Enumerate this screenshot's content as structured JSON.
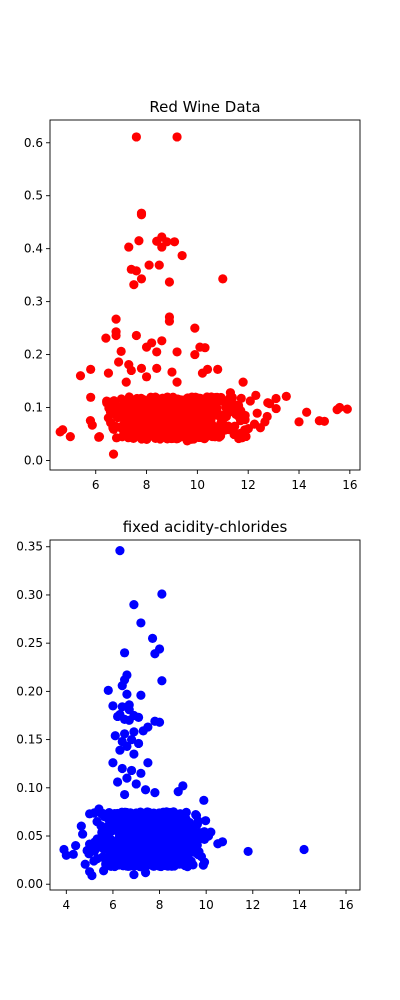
{
  "chart_data": [
    {
      "type": "scatter",
      "title": "Red Wine Data",
      "xlabel": "",
      "ylabel": "",
      "xlim": [
        4.2,
        16.4
      ],
      "ylim": [
        -0.018,
        0.643
      ],
      "xticks": [
        6,
        8,
        10,
        12,
        14,
        16
      ],
      "yticks": [
        0.0,
        0.1,
        0.2,
        0.3,
        0.4,
        0.5,
        0.6
      ],
      "ytick_labels": [
        "0.0",
        "0.1",
        "0.2",
        "0.3",
        "0.4",
        "0.5",
        "0.6"
      ],
      "xtick_labels": [
        "6",
        "8",
        "10",
        "12",
        "14",
        "16"
      ],
      "color": "#ff0000",
      "grid": false,
      "cluster": {
        "x_range": [
          4.9,
          13.6
        ],
        "y_range": [
          0.04,
          0.12
        ],
        "count": 620
      },
      "points": [
        [
          7.6,
          0.611
        ],
        [
          9.2,
          0.611
        ],
        [
          7.8,
          0.467
        ],
        [
          7.8,
          0.464
        ],
        [
          8.6,
          0.422
        ],
        [
          8.4,
          0.414
        ],
        [
          8.8,
          0.413
        ],
        [
          9.1,
          0.413
        ],
        [
          8.6,
          0.403
        ],
        [
          7.3,
          0.403
        ],
        [
          7.7,
          0.415
        ],
        [
          9.4,
          0.387
        ],
        [
          8.1,
          0.369
        ],
        [
          8.5,
          0.369
        ],
        [
          7.4,
          0.361
        ],
        [
          7.6,
          0.358
        ],
        [
          7.8,
          0.343
        ],
        [
          8.9,
          0.337
        ],
        [
          11.0,
          0.343
        ],
        [
          7.5,
          0.332
        ],
        [
          8.9,
          0.271
        ],
        [
          8.9,
          0.263
        ],
        [
          6.8,
          0.267
        ],
        [
          9.9,
          0.25
        ],
        [
          6.8,
          0.243
        ],
        [
          6.8,
          0.236
        ],
        [
          7.6,
          0.236
        ],
        [
          6.4,
          0.231
        ],
        [
          8.6,
          0.226
        ],
        [
          8.2,
          0.222
        ],
        [
          8.0,
          0.214
        ],
        [
          10.1,
          0.214
        ],
        [
          10.3,
          0.213
        ],
        [
          7.0,
          0.206
        ],
        [
          8.4,
          0.205
        ],
        [
          9.2,
          0.205
        ],
        [
          9.9,
          0.2
        ],
        [
          6.9,
          0.186
        ],
        [
          7.3,
          0.181
        ],
        [
          7.8,
          0.174
        ],
        [
          8.4,
          0.174
        ],
        [
          10.4,
          0.172
        ],
        [
          7.4,
          0.17
        ],
        [
          9.0,
          0.167
        ],
        [
          10.8,
          0.172
        ],
        [
          5.8,
          0.172
        ],
        [
          6.5,
          0.165
        ],
        [
          10.2,
          0.165
        ],
        [
          8.0,
          0.158
        ],
        [
          5.4,
          0.16
        ],
        [
          9.2,
          0.148
        ],
        [
          11.8,
          0.148
        ],
        [
          7.2,
          0.148
        ],
        [
          12.3,
          0.123
        ],
        [
          11.3,
          0.128
        ],
        [
          13.5,
          0.121
        ],
        [
          14.3,
          0.091
        ],
        [
          15.6,
          0.1
        ],
        [
          15.9,
          0.097
        ],
        [
          15.5,
          0.096
        ],
        [
          15.0,
          0.074
        ],
        [
          14.8,
          0.075
        ],
        [
          4.6,
          0.054
        ],
        [
          4.7,
          0.058
        ],
        [
          5.0,
          0.045
        ],
        [
          6.7,
          0.012
        ],
        [
          8.0,
          0.04
        ],
        [
          9.6,
          0.037
        ],
        [
          14.0,
          0.073
        ],
        [
          13.1,
          0.098
        ]
      ]
    },
    {
      "type": "scatter",
      "title": "fixed acidity-chlorides",
      "xlabel": "",
      "ylabel": "",
      "xlim": [
        3.3,
        16.6
      ],
      "ylim": [
        -0.006,
        0.357
      ],
      "xticks": [
        4,
        6,
        8,
        10,
        12,
        14,
        16
      ],
      "yticks": [
        0.0,
        0.05,
        0.1,
        0.15,
        0.2,
        0.25,
        0.3,
        0.35
      ],
      "ytick_labels": [
        "0.00",
        "0.05",
        "0.10",
        "0.15",
        "0.20",
        "0.25",
        "0.30",
        "0.35"
      ],
      "xtick_labels": [
        "4",
        "6",
        "8",
        "10",
        "12",
        "14",
        "16"
      ],
      "color": "#0000ff",
      "grid": false,
      "cluster": {
        "x_range": [
          4.3,
          10.5
        ],
        "y_range": [
          0.018,
          0.075
        ],
        "count": 900
      },
      "points": [
        [
          6.3,
          0.346
        ],
        [
          8.1,
          0.301
        ],
        [
          6.9,
          0.29
        ],
        [
          7.2,
          0.271
        ],
        [
          7.7,
          0.255
        ],
        [
          8.0,
          0.244
        ],
        [
          6.5,
          0.24
        ],
        [
          7.8,
          0.239
        ],
        [
          8.1,
          0.211
        ],
        [
          6.6,
          0.217
        ],
        [
          6.5,
          0.212
        ],
        [
          6.4,
          0.206
        ],
        [
          5.8,
          0.201
        ],
        [
          6.6,
          0.197
        ],
        [
          7.2,
          0.196
        ],
        [
          6.7,
          0.186
        ],
        [
          6.4,
          0.184
        ],
        [
          6.0,
          0.185
        ],
        [
          6.7,
          0.181
        ],
        [
          6.3,
          0.176
        ],
        [
          6.9,
          0.175
        ],
        [
          6.2,
          0.174
        ],
        [
          7.1,
          0.173
        ],
        [
          6.5,
          0.171
        ],
        [
          6.7,
          0.17
        ],
        [
          7.8,
          0.169
        ],
        [
          8.0,
          0.168
        ],
        [
          7.5,
          0.163
        ],
        [
          7.3,
          0.159
        ],
        [
          6.9,
          0.158
        ],
        [
          6.5,
          0.156
        ],
        [
          6.1,
          0.154
        ],
        [
          6.8,
          0.15
        ],
        [
          6.4,
          0.148
        ],
        [
          7.1,
          0.146
        ],
        [
          6.6,
          0.143
        ],
        [
          6.3,
          0.139
        ],
        [
          6.9,
          0.135
        ],
        [
          7.5,
          0.126
        ],
        [
          6.0,
          0.126
        ],
        [
          6.4,
          0.12
        ],
        [
          6.8,
          0.118
        ],
        [
          7.2,
          0.115
        ],
        [
          6.6,
          0.11
        ],
        [
          6.2,
          0.106
        ],
        [
          7.0,
          0.104
        ],
        [
          9.0,
          0.102
        ],
        [
          8.8,
          0.096
        ],
        [
          9.9,
          0.087
        ],
        [
          7.4,
          0.098
        ],
        [
          8.3,
          0.075
        ],
        [
          8.6,
          0.075
        ],
        [
          7.8,
          0.095
        ],
        [
          6.5,
          0.093
        ],
        [
          5.4,
          0.078
        ],
        [
          5.2,
          0.074
        ],
        [
          5.0,
          0.073
        ],
        [
          4.7,
          0.052
        ],
        [
          4.4,
          0.04
        ],
        [
          3.9,
          0.036
        ],
        [
          4.0,
          0.03
        ],
        [
          4.3,
          0.031
        ],
        [
          5.0,
          0.013
        ],
        [
          5.1,
          0.009
        ],
        [
          5.6,
          0.014
        ],
        [
          11.8,
          0.034
        ],
        [
          14.2,
          0.036
        ],
        [
          10.7,
          0.044
        ],
        [
          10.5,
          0.042
        ],
        [
          10.1,
          0.05
        ],
        [
          10.2,
          0.054
        ],
        [
          9.7,
          0.047
        ],
        [
          6.9,
          0.01
        ],
        [
          7.4,
          0.012
        ],
        [
          8.6,
          0.02
        ]
      ]
    }
  ]
}
